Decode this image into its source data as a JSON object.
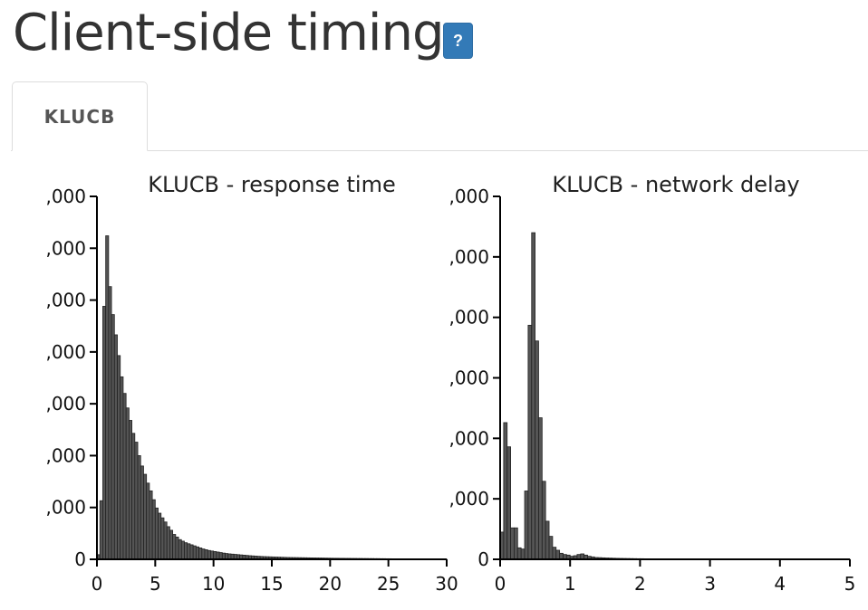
{
  "page": {
    "title": "Client-side timing",
    "help_label": "?",
    "tabs": [
      {
        "label": "KLUCB"
      }
    ]
  },
  "chart_data": [
    {
      "type": "bar",
      "title": "KLUCB - response time",
      "xlabel": "",
      "ylabel": "",
      "xlim": [
        0,
        30
      ],
      "xticks": [
        0,
        5,
        10,
        15,
        20,
        25,
        30
      ],
      "ylim": [
        0,
        7000
      ],
      "yticks": [
        0,
        1000,
        2000,
        3000,
        4000,
        5000,
        6000,
        7000
      ],
      "ytick_labels": [
        "0",
        ",000",
        ",000",
        ",000",
        ",000",
        ",000",
        ",000",
        ",000"
      ],
      "bin_width": 0.25,
      "bin_start": 0,
      "values": [
        90,
        1130,
        4880,
        6240,
        5260,
        4720,
        4330,
        3930,
        3520,
        3200,
        2920,
        2680,
        2430,
        2260,
        2000,
        1800,
        1640,
        1470,
        1320,
        1150,
        990,
        890,
        800,
        720,
        630,
        560,
        480,
        430,
        380,
        350,
        320,
        300,
        280,
        260,
        240,
        220,
        200,
        185,
        170,
        160,
        150,
        140,
        130,
        120,
        112,
        105,
        100,
        95,
        90,
        85,
        80,
        75,
        70,
        66,
        62,
        58,
        55,
        52,
        50,
        48,
        46,
        44,
        42,
        40,
        38,
        36,
        35,
        34,
        33,
        32,
        31,
        30,
        29,
        28,
        27,
        26,
        25,
        24,
        23,
        22,
        21,
        20,
        20,
        19,
        19,
        18,
        18,
        17,
        17,
        16,
        16,
        15,
        15,
        14,
        14,
        13,
        13,
        12,
        12,
        11,
        11,
        10,
        10,
        10,
        9,
        9,
        9,
        8,
        8,
        8,
        7,
        7,
        7,
        6,
        6,
        6,
        5,
        5,
        5,
        5
      ]
    },
    {
      "type": "bar",
      "title": "KLUCB - network delay",
      "xlabel": "",
      "ylabel": "",
      "xlim": [
        0,
        5
      ],
      "xticks": [
        0,
        1,
        2,
        3,
        4,
        5
      ],
      "ylim": [
        0,
        6000
      ],
      "yticks": [
        0,
        1000,
        2000,
        3000,
        4000,
        5000,
        6000
      ],
      "ytick_labels": [
        "0",
        ",000",
        ",000",
        ",000",
        ",000",
        ",000",
        ",000"
      ],
      "bin_width": 0.05,
      "bin_start": 0,
      "values": [
        450,
        2260,
        1860,
        520,
        520,
        190,
        170,
        1130,
        3870,
        5400,
        3610,
        2340,
        1290,
        630,
        380,
        200,
        150,
        100,
        80,
        70,
        50,
        60,
        80,
        90,
        70,
        50,
        40,
        30,
        28,
        25,
        22,
        20,
        18,
        16,
        15,
        14,
        13,
        12,
        11,
        10,
        10,
        9,
        9,
        8,
        8,
        7,
        7,
        6,
        6,
        6,
        5,
        5,
        5,
        5,
        4,
        4,
        4,
        4,
        3,
        3,
        3,
        3,
        3,
        2,
        2,
        2,
        2,
        2,
        2,
        2,
        1,
        1,
        1,
        1,
        1,
        1,
        1,
        1,
        1,
        1,
        1,
        1,
        1,
        1,
        1,
        1,
        1,
        1,
        1,
        1,
        1,
        1,
        1,
        1,
        1,
        1,
        1,
        1,
        1,
        1
      ]
    }
  ]
}
